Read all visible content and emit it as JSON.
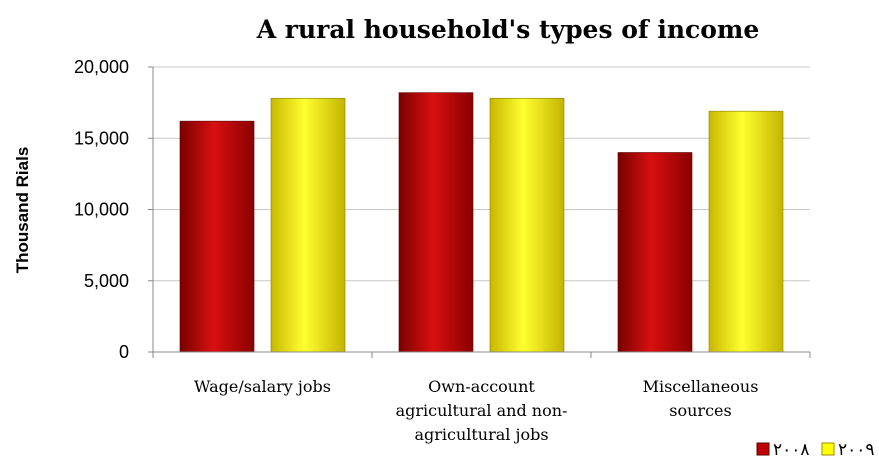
{
  "chart_data": {
    "type": "bar",
    "title": "A rural household's types of income",
    "xlabel": "",
    "ylabel": "Thousand Rials",
    "ylim": [
      0,
      20000
    ],
    "yticks": [
      "0",
      "5,000",
      "10,000",
      "15,000",
      "20,000"
    ],
    "categories": [
      [
        "Wage/salary jobs"
      ],
      [
        "Own-account",
        "agricultural and non-",
        "agricultural jobs"
      ],
      [
        "Miscellaneous",
        "sources"
      ]
    ],
    "series": [
      {
        "name": "۲۰۰۸",
        "values": [
          16200,
          18200,
          14000
        ]
      },
      {
        "name": "۲۰۰۹",
        "values": [
          17800,
          17800,
          16900
        ]
      }
    ],
    "legend_position": "bottom-right",
    "grid": true
  },
  "colors": {
    "series_2008": "#c00000",
    "series_2009": "#ffff00",
    "grid": "#c8c8c8"
  }
}
